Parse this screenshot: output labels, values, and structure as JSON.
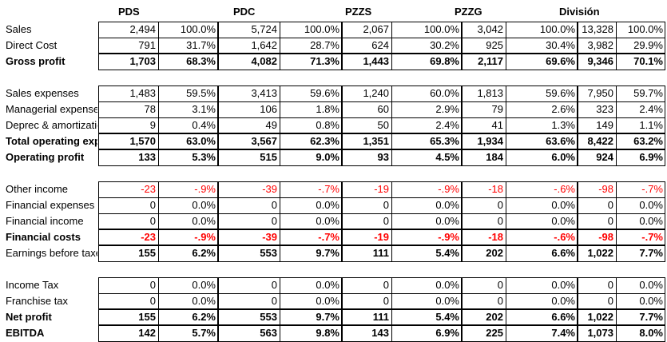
{
  "columns": [
    "PDS",
    "PDC",
    "PZZS",
    "PZZG",
    "División"
  ],
  "sections": [
    {
      "rows": [
        {
          "label": "Sales",
          "bold": false,
          "neg": false,
          "values": [
            [
              "2,494",
              "100.0%"
            ],
            [
              "5,724",
              "100.0%"
            ],
            [
              "2,067",
              "100.0%"
            ],
            [
              "3,042",
              "100.0%"
            ],
            [
              "13,328",
              "100.0%"
            ]
          ]
        },
        {
          "label": "Direct Cost",
          "bold": false,
          "neg": false,
          "values": [
            [
              "791",
              "31.7%"
            ],
            [
              "1,642",
              "28.7%"
            ],
            [
              "624",
              "30.2%"
            ],
            [
              "925",
              "30.4%"
            ],
            [
              "3,982",
              "29.9%"
            ]
          ]
        },
        {
          "label": "Gross profit",
          "bold": true,
          "neg": false,
          "values": [
            [
              "1,703",
              "68.3%"
            ],
            [
              "4,082",
              "71.3%"
            ],
            [
              "1,443",
              "69.8%"
            ],
            [
              "2,117",
              "69.6%"
            ],
            [
              "9,346",
              "70.1%"
            ]
          ]
        }
      ]
    },
    {
      "rows": [
        {
          "label": "Sales expenses",
          "bold": false,
          "neg": false,
          "values": [
            [
              "1,483",
              "59.5%"
            ],
            [
              "3,413",
              "59.6%"
            ],
            [
              "1,240",
              "60.0%"
            ],
            [
              "1,813",
              "59.6%"
            ],
            [
              "7,950",
              "59.7%"
            ]
          ]
        },
        {
          "label": "Managerial expenses",
          "bold": false,
          "neg": false,
          "values": [
            [
              "78",
              "3.1%"
            ],
            [
              "106",
              "1.8%"
            ],
            [
              "60",
              "2.9%"
            ],
            [
              "79",
              "2.6%"
            ],
            [
              "323",
              "2.4%"
            ]
          ]
        },
        {
          "label": "Deprec & amortization",
          "bold": false,
          "neg": false,
          "values": [
            [
              "9",
              "0.4%"
            ],
            [
              "49",
              "0.8%"
            ],
            [
              "50",
              "2.4%"
            ],
            [
              "41",
              "1.3%"
            ],
            [
              "149",
              "1.1%"
            ]
          ]
        },
        {
          "label": "Total operating expenses",
          "bold": true,
          "neg": false,
          "values": [
            [
              "1,570",
              "63.0%"
            ],
            [
              "3,567",
              "62.3%"
            ],
            [
              "1,351",
              "65.3%"
            ],
            [
              "1,934",
              "63.6%"
            ],
            [
              "8,422",
              "63.2%"
            ]
          ]
        },
        {
          "label": "Operating profit",
          "bold": true,
          "neg": false,
          "values": [
            [
              "133",
              "5.3%"
            ],
            [
              "515",
              "9.0%"
            ],
            [
              "93",
              "4.5%"
            ],
            [
              "184",
              "6.0%"
            ],
            [
              "924",
              "6.9%"
            ]
          ]
        }
      ]
    },
    {
      "rows": [
        {
          "label": "Other income",
          "bold": false,
          "neg": true,
          "values": [
            [
              "-23",
              "-.9%"
            ],
            [
              "-39",
              "-.7%"
            ],
            [
              "-19",
              "-.9%"
            ],
            [
              "-18",
              "-.6%"
            ],
            [
              "-98",
              "-.7%"
            ]
          ]
        },
        {
          "label": "Financial expenses",
          "bold": false,
          "neg": false,
          "values": [
            [
              "0",
              "0.0%"
            ],
            [
              "0",
              "0.0%"
            ],
            [
              "0",
              "0.0%"
            ],
            [
              "0",
              "0.0%"
            ],
            [
              "0",
              "0.0%"
            ]
          ]
        },
        {
          "label": "Financial income",
          "bold": false,
          "neg": false,
          "values": [
            [
              "0",
              "0.0%"
            ],
            [
              "0",
              "0.0%"
            ],
            [
              "0",
              "0.0%"
            ],
            [
              "0",
              "0.0%"
            ],
            [
              "0",
              "0.0%"
            ]
          ]
        },
        {
          "label": "Financial costs",
          "bold": true,
          "neg": true,
          "values": [
            [
              "-23",
              "-.9%"
            ],
            [
              "-39",
              "-.7%"
            ],
            [
              "-19",
              "-.9%"
            ],
            [
              "-18",
              "-.6%"
            ],
            [
              "-98",
              "-.7%"
            ]
          ]
        },
        {
          "label": "Earnings before taxes",
          "bold": false,
          "neg": false,
          "bold_values": true,
          "values": [
            [
              "155",
              "6.2%"
            ],
            [
              "553",
              "9.7%"
            ],
            [
              "111",
              "5.4%"
            ],
            [
              "202",
              "6.6%"
            ],
            [
              "1,022",
              "7.7%"
            ]
          ]
        }
      ]
    },
    {
      "rows": [
        {
          "label": "Income Tax",
          "bold": false,
          "neg": false,
          "values": [
            [
              "0",
              "0.0%"
            ],
            [
              "0",
              "0.0%"
            ],
            [
              "0",
              "0.0%"
            ],
            [
              "0",
              "0.0%"
            ],
            [
              "0",
              "0.0%"
            ]
          ]
        },
        {
          "label": "Franchise tax",
          "bold": false,
          "neg": false,
          "values": [
            [
              "0",
              "0.0%"
            ],
            [
              "0",
              "0.0%"
            ],
            [
              "0",
              "0.0%"
            ],
            [
              "0",
              "0.0%"
            ],
            [
              "0",
              "0.0%"
            ]
          ]
        },
        {
          "label": "Net profit",
          "bold": true,
          "neg": false,
          "values": [
            [
              "155",
              "6.2%"
            ],
            [
              "553",
              "9.7%"
            ],
            [
              "111",
              "5.4%"
            ],
            [
              "202",
              "6.6%"
            ],
            [
              "1,022",
              "7.7%"
            ]
          ]
        },
        {
          "label": "EBITDA",
          "bold": true,
          "neg": false,
          "values": [
            [
              "142",
              "5.7%"
            ],
            [
              "563",
              "9.8%"
            ],
            [
              "143",
              "6.9%"
            ],
            [
              "225",
              "7.4%"
            ],
            [
              "1,073",
              "8.0%"
            ]
          ]
        }
      ]
    }
  ]
}
